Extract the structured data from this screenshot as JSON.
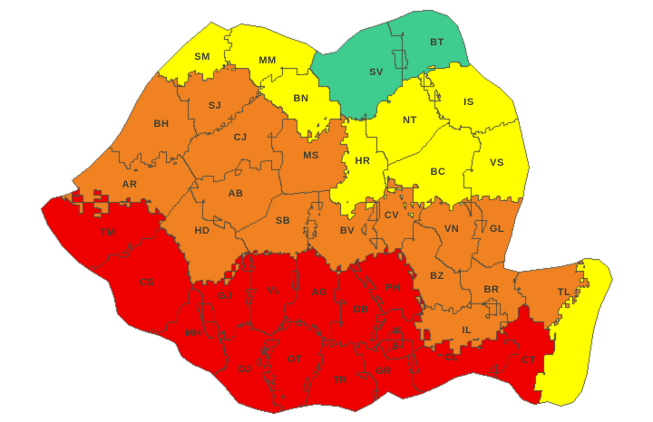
{
  "map": {
    "type": "choropleth",
    "country": "Romania",
    "background": "#ffffff",
    "warning_levels": {
      "green": "#3FCC8F",
      "yellow": "#FFFF00",
      "orange": "#F08221",
      "red": "#EF0000"
    },
    "border_color": "#4E4E42",
    "outline_color": "#5A5A50",
    "label_color": "#3F3F33",
    "coastal_strip": {
      "level": "yellow"
    },
    "counties": [
      {
        "code": "SM",
        "level": "yellow"
      },
      {
        "code": "MM",
        "level": "yellow"
      },
      {
        "code": "BT",
        "level": "green"
      },
      {
        "code": "SV",
        "level": "green"
      },
      {
        "code": "BN",
        "level": "yellow"
      },
      {
        "code": "IS",
        "level": "yellow"
      },
      {
        "code": "NT",
        "level": "yellow"
      },
      {
        "code": "VS",
        "level": "yellow"
      },
      {
        "code": "BC",
        "level": "yellow"
      },
      {
        "code": "HR",
        "level": "yellow"
      },
      {
        "code": "SJ",
        "level": "orange"
      },
      {
        "code": "BH",
        "level": "orange"
      },
      {
        "code": "CJ",
        "level": "orange"
      },
      {
        "code": "MS",
        "level": "orange"
      },
      {
        "code": "AR",
        "level": "orange"
      },
      {
        "code": "AB",
        "level": "orange"
      },
      {
        "code": "HD",
        "level": "orange"
      },
      {
        "code": "SB",
        "level": "orange"
      },
      {
        "code": "BV",
        "level": "orange"
      },
      {
        "code": "CV",
        "level": "orange"
      },
      {
        "code": "VN",
        "level": "orange"
      },
      {
        "code": "GL",
        "level": "orange"
      },
      {
        "code": "BZ",
        "level": "orange"
      },
      {
        "code": "BR",
        "level": "orange"
      },
      {
        "code": "TL",
        "level": "orange"
      },
      {
        "code": "IL",
        "level": "orange"
      },
      {
        "code": "TM",
        "level": "red"
      },
      {
        "code": "CS",
        "level": "red"
      },
      {
        "code": "MH",
        "level": "red"
      },
      {
        "code": "GJ",
        "level": "red"
      },
      {
        "code": "VL",
        "level": "red"
      },
      {
        "code": "AG",
        "level": "red"
      },
      {
        "code": "DB",
        "level": "red"
      },
      {
        "code": "PH",
        "level": "red"
      },
      {
        "code": "DJ",
        "level": "red"
      },
      {
        "code": "OT",
        "level": "red"
      },
      {
        "code": "TR",
        "level": "red"
      },
      {
        "code": "GR",
        "level": "red"
      },
      {
        "code": "IF",
        "level": "red"
      },
      {
        "code": "B",
        "level": "red"
      },
      {
        "code": "CL",
        "level": "red"
      },
      {
        "code": "CT",
        "level": "red"
      }
    ]
  }
}
